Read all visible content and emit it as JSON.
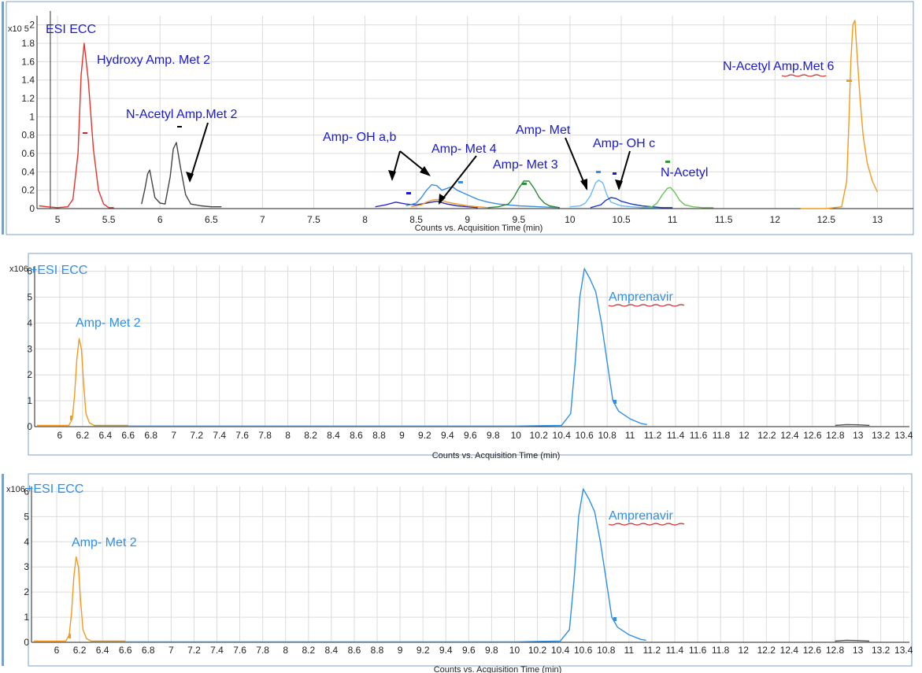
{
  "chart_data": [
    {
      "type": "line",
      "panel_title": "ESI ECC",
      "y_prefix": "x10 5",
      "xlabel": "Counts vs. Acquisition Time (min)",
      "xlim": [
        4.8,
        13.35
      ],
      "ylim": [
        0,
        2.1
      ],
      "x_ticks": [
        "5",
        "5.5",
        "6",
        "6.5",
        "7",
        "7.5",
        "8",
        "8.5",
        "9",
        "9.5",
        "10",
        "10.5",
        "11",
        "11.5",
        "12",
        "12.5",
        "13"
      ],
      "y_ticks": [
        "0",
        "0.2",
        "0.4",
        "0.6",
        "0.8",
        "1",
        "1.2",
        "1.4",
        "1.6",
        "1.8",
        "2"
      ],
      "grid": true,
      "annotations": [
        "Hydroxy Amp. Met 2",
        "N-Acetyl Amp.Met 2",
        "Amp- OH a,b",
        "Amp- Met 4",
        "Amp- Met 3",
        "Amp- Met",
        "Amp- OH c",
        "N-Acetyl",
        "N-Acetyl Amp.Met 6"
      ],
      "series": [
        {
          "color": "#e8312b",
          "x": [
            4.82,
            4.9,
            5.0,
            5.1,
            5.15,
            5.2,
            5.23,
            5.26,
            5.3,
            5.35,
            5.4,
            5.45,
            5.5,
            5.55
          ],
          "y": [
            0.03,
            0.02,
            0.01,
            0.02,
            0.1,
            0.6,
            1.45,
            1.8,
            1.4,
            0.65,
            0.2,
            0.05,
            0.01,
            0.01
          ]
        },
        {
          "color": "#444444",
          "x": [
            5.82,
            5.85,
            5.88,
            5.9,
            5.92,
            5.95,
            6.0,
            6.05,
            6.1,
            6.13,
            6.16,
            6.2,
            6.25,
            6.3,
            6.4,
            6.5,
            6.6
          ],
          "y": [
            0.05,
            0.2,
            0.38,
            0.42,
            0.3,
            0.12,
            0.06,
            0.05,
            0.35,
            0.65,
            0.72,
            0.45,
            0.15,
            0.05,
            0.03,
            0.02,
            0.02
          ]
        },
        {
          "color": "#2a2ac8",
          "x": [
            8.1,
            8.2,
            8.3,
            8.4,
            8.5,
            8.6,
            8.7,
            8.8,
            8.9,
            9.0,
            9.1
          ],
          "y": [
            0.02,
            0.04,
            0.07,
            0.05,
            0.04,
            0.06,
            0.08,
            0.05,
            0.03,
            0.02,
            0.01
          ]
        },
        {
          "color": "#3b8fe0",
          "x": [
            8.4,
            8.5,
            8.55,
            8.6,
            8.65,
            8.7,
            8.75,
            8.8,
            8.85,
            8.9,
            9.0,
            9.1,
            9.2,
            9.3,
            9.5,
            9.7,
            9.9
          ],
          "y": [
            0.03,
            0.06,
            0.12,
            0.2,
            0.26,
            0.25,
            0.2,
            0.22,
            0.24,
            0.2,
            0.15,
            0.1,
            0.07,
            0.05,
            0.03,
            0.02,
            0.01
          ]
        },
        {
          "color": "#f39a1f",
          "x": [
            8.45,
            8.55,
            8.6,
            8.65,
            8.7,
            8.75,
            8.8,
            8.9,
            9.0,
            9.1,
            9.2
          ],
          "y": [
            0.02,
            0.04,
            0.07,
            0.09,
            0.1,
            0.09,
            0.07,
            0.05,
            0.03,
            0.02,
            0.01
          ]
        },
        {
          "color": "#2e8b3a",
          "x": [
            9.2,
            9.3,
            9.4,
            9.45,
            9.5,
            9.55,
            9.6,
            9.65,
            9.7,
            9.75,
            9.8,
            9.85,
            9.9
          ],
          "y": [
            0.01,
            0.02,
            0.05,
            0.12,
            0.22,
            0.3,
            0.3,
            0.22,
            0.12,
            0.06,
            0.03,
            0.02,
            0.01
          ]
        },
        {
          "color": "#69b9ff",
          "x": [
            10.0,
            10.1,
            10.15,
            10.2,
            10.25,
            10.28,
            10.32,
            10.36,
            10.4,
            10.5,
            10.6,
            10.7,
            10.9
          ],
          "y": [
            0.02,
            0.03,
            0.06,
            0.14,
            0.28,
            0.31,
            0.28,
            0.15,
            0.07,
            0.03,
            0.02,
            0.01,
            0.01
          ]
        },
        {
          "color": "#1e3ec8",
          "x": [
            10.2,
            10.3,
            10.35,
            10.4,
            10.45,
            10.5,
            10.6,
            10.7,
            10.8,
            10.9,
            11.0
          ],
          "y": [
            0.01,
            0.04,
            0.09,
            0.12,
            0.11,
            0.08,
            0.05,
            0.03,
            0.02,
            0.01,
            0.01
          ]
        },
        {
          "color": "#6cc35a",
          "x": [
            10.7,
            10.8,
            10.85,
            10.9,
            10.95,
            10.98,
            11.02,
            11.07,
            11.12,
            11.2,
            11.3,
            11.4
          ],
          "y": [
            0.01,
            0.02,
            0.06,
            0.15,
            0.22,
            0.23,
            0.18,
            0.09,
            0.04,
            0.02,
            0.01,
            0.01
          ]
        },
        {
          "color": "#f39a1f",
          "x": [
            12.25,
            12.5,
            12.65,
            12.7,
            12.72,
            12.74,
            12.76,
            12.78,
            12.8,
            12.83,
            12.86,
            12.9,
            12.95,
            13.0
          ],
          "y": [
            0.0,
            0.0,
            0.02,
            0.3,
            0.9,
            1.6,
            2.0,
            2.05,
            1.7,
            1.2,
            0.8,
            0.5,
            0.3,
            0.18
          ]
        }
      ]
    },
    {
      "type": "line",
      "panel_title": "+ESI ECC",
      "y_prefix": "x106",
      "xlabel": "Counts vs. Acquisition Time (min)",
      "xlim": [
        5.78,
        13.45
      ],
      "ylim": [
        0,
        6.2
      ],
      "x_ticks": [
        "6",
        "6.2",
        "6.4",
        "6.6",
        "6.8",
        "7",
        "7.2",
        "7.4",
        "7.6",
        "7.8",
        "8",
        "8.2",
        "8.4",
        "8.6",
        "8.8",
        "9",
        "9.2",
        "9.4",
        "9.6",
        "9.8",
        "10",
        "10.2",
        "10.4",
        "10.6",
        "10.8",
        "11",
        "11.2",
        "11.4",
        "11.6",
        "11.8",
        "12",
        "12.2",
        "12.4",
        "12.6",
        "12.8",
        "13",
        "13.2",
        "13.4"
      ],
      "y_ticks": [
        "0",
        "1",
        "2",
        "3",
        "4",
        "5",
        "6"
      ],
      "grid": true,
      "annotations": [
        "Amp- Met 2",
        "Amprenavir"
      ],
      "series": [
        {
          "color": "#f39a1f",
          "x": [
            5.8,
            5.95,
            6.08,
            6.11,
            6.13,
            6.15,
            6.17,
            6.19,
            6.21,
            6.23,
            6.26,
            6.3,
            6.4,
            6.6
          ],
          "y": [
            0.05,
            0.05,
            0.05,
            0.3,
            1.2,
            2.6,
            3.4,
            3.0,
            1.6,
            0.5,
            0.15,
            0.05,
            0.05,
            0.05
          ]
        },
        {
          "color": "#2e8fe8",
          "x": [
            6.3,
            8.0,
            10.0,
            10.4,
            10.48,
            10.52,
            10.56,
            10.6,
            10.65,
            10.7,
            10.75,
            10.8,
            10.85,
            10.9,
            11.0,
            11.1,
            11.15
          ],
          "y": [
            0.02,
            0.02,
            0.02,
            0.05,
            0.5,
            2.5,
            5.0,
            6.1,
            5.7,
            5.2,
            4.0,
            2.5,
            1.0,
            0.6,
            0.3,
            0.12,
            0.08
          ]
        },
        {
          "color": "#555555",
          "x": [
            12.8,
            12.9,
            13.0,
            13.1
          ],
          "y": [
            0.05,
            0.08,
            0.07,
            0.05
          ]
        }
      ]
    },
    {
      "type": "line",
      "panel_title": "+ESI ECC",
      "y_prefix": "x106",
      "xlabel": "Counts vs. Acquisition Time (min)",
      "xlim": [
        5.78,
        13.45
      ],
      "ylim": [
        0,
        6.2
      ],
      "x_ticks": [
        "6",
        "6.2",
        "6.4",
        "6.6",
        "6.8",
        "7",
        "7.2",
        "7.4",
        "7.6",
        "7.8",
        "8",
        "8.2",
        "8.4",
        "8.6",
        "8.8",
        "9",
        "9.2",
        "9.4",
        "9.6",
        "9.8",
        "10",
        "10.2",
        "10.4",
        "10.6",
        "10.8",
        "11",
        "11.2",
        "11.4",
        "11.6",
        "11.8",
        "12",
        "12.2",
        "12.4",
        "12.6",
        "12.8",
        "13",
        "13.2",
        "13.4"
      ],
      "y_ticks": [
        "0",
        "1",
        "2",
        "3",
        "4",
        "5",
        "6"
      ],
      "grid": true,
      "annotations": [
        "Amp- Met 2",
        "Amprenavir"
      ],
      "series": [
        {
          "color": "#f39a1f",
          "x": [
            5.8,
            5.95,
            6.08,
            6.11,
            6.13,
            6.15,
            6.17,
            6.19,
            6.21,
            6.23,
            6.26,
            6.3,
            6.4,
            6.6
          ],
          "y": [
            0.05,
            0.05,
            0.05,
            0.3,
            1.2,
            2.6,
            3.4,
            3.0,
            1.6,
            0.5,
            0.15,
            0.05,
            0.05,
            0.05
          ]
        },
        {
          "color": "#2e8fe8",
          "x": [
            6.3,
            8.0,
            10.0,
            10.4,
            10.48,
            10.52,
            10.56,
            10.6,
            10.65,
            10.7,
            10.75,
            10.8,
            10.85,
            10.9,
            11.0,
            11.1,
            11.15
          ],
          "y": [
            0.02,
            0.02,
            0.02,
            0.05,
            0.5,
            2.5,
            5.0,
            6.1,
            5.7,
            5.2,
            4.0,
            2.5,
            1.0,
            0.6,
            0.3,
            0.12,
            0.08
          ]
        },
        {
          "color": "#555555",
          "x": [
            12.8,
            12.9,
            13.0,
            13.1
          ],
          "y": [
            0.05,
            0.08,
            0.07,
            0.05
          ]
        }
      ]
    }
  ]
}
